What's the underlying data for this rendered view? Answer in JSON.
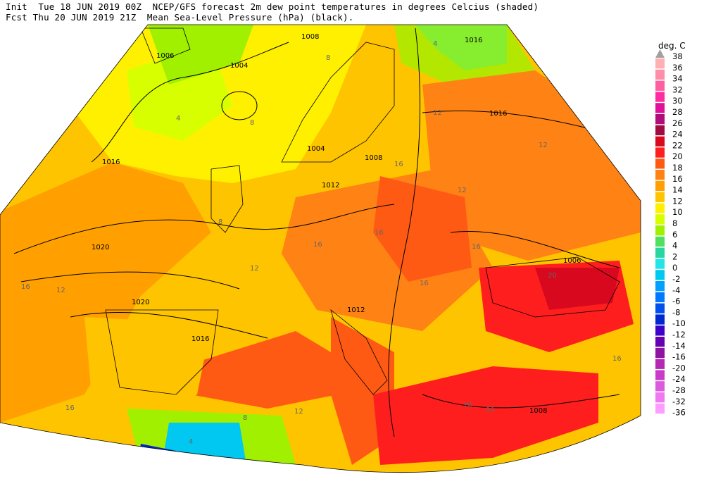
{
  "header": {
    "line1": "Init  Tue 18 JUN 2019 00Z  NCEP/GFS forecast 2m dew point temperatures in degrees Celcius (shaded)",
    "line2": "Fcst Thu 20 JUN 2019 21Z  Mean Sea-Level Pressure (hPa) (black)."
  },
  "legend": {
    "units": "deg. C",
    "levels": [
      {
        "label": "38",
        "color": "#a0a0a0"
      },
      {
        "label": "36",
        "color": "#ffb0b0"
      },
      {
        "label": "34",
        "color": "#ff8ca8"
      },
      {
        "label": "32",
        "color": "#ff5fa0"
      },
      {
        "label": "30",
        "color": "#ff2ca0"
      },
      {
        "label": "28",
        "color": "#e0109a"
      },
      {
        "label": "26",
        "color": "#b00c7c"
      },
      {
        "label": "24",
        "color": "#a00c40"
      },
      {
        "label": "22",
        "color": "#d8081e"
      },
      {
        "label": "20",
        "color": "#ff1e1e"
      },
      {
        "label": "18",
        "color": "#ff5a14"
      },
      {
        "label": "16",
        "color": "#ff8214"
      },
      {
        "label": "14",
        "color": "#ffa000"
      },
      {
        "label": "12",
        "color": "#ffc400"
      },
      {
        "label": "10",
        "color": "#fff000"
      },
      {
        "label": "8",
        "color": "#d8ff00"
      },
      {
        "label": "6",
        "color": "#a0f000"
      },
      {
        "label": "4",
        "color": "#50e060"
      },
      {
        "label": "2",
        "color": "#28d7a0"
      },
      {
        "label": "0",
        "color": "#22e6e6"
      },
      {
        "label": "-2",
        "color": "#00c8f0"
      },
      {
        "label": "-4",
        "color": "#00a0ff"
      },
      {
        "label": "-6",
        "color": "#0078ff"
      },
      {
        "label": "-8",
        "color": "#0050f0"
      },
      {
        "label": "-10",
        "color": "#0028d0"
      },
      {
        "label": "-12",
        "color": "#3c00c8"
      },
      {
        "label": "-14",
        "color": "#6400b4"
      },
      {
        "label": "-16",
        "color": "#8c14a0"
      },
      {
        "label": "-20",
        "color": "#b428b4"
      },
      {
        "label": "-24",
        "color": "#c83cc8"
      },
      {
        "label": "-28",
        "color": "#dc5adc"
      },
      {
        "label": "-32",
        "color": "#f078f0"
      },
      {
        "label": "-36",
        "color": "#ff9cff"
      }
    ]
  },
  "map": {
    "pressure_labels": [
      "1008",
      "1006",
      "1004",
      "1016",
      "1016",
      "1004",
      "1008",
      "1012",
      "1016",
      "1020",
      "1020",
      "1016",
      "1012",
      "1006",
      "1008"
    ],
    "dewpoint_labels": [
      "4",
      "8",
      "4",
      "8",
      "12",
      "12",
      "16",
      "12",
      "16",
      "12",
      "16",
      "16",
      "12",
      "8",
      "16",
      "20",
      "16",
      "20",
      "20",
      "16",
      "12",
      "8",
      "4",
      "16"
    ]
  }
}
